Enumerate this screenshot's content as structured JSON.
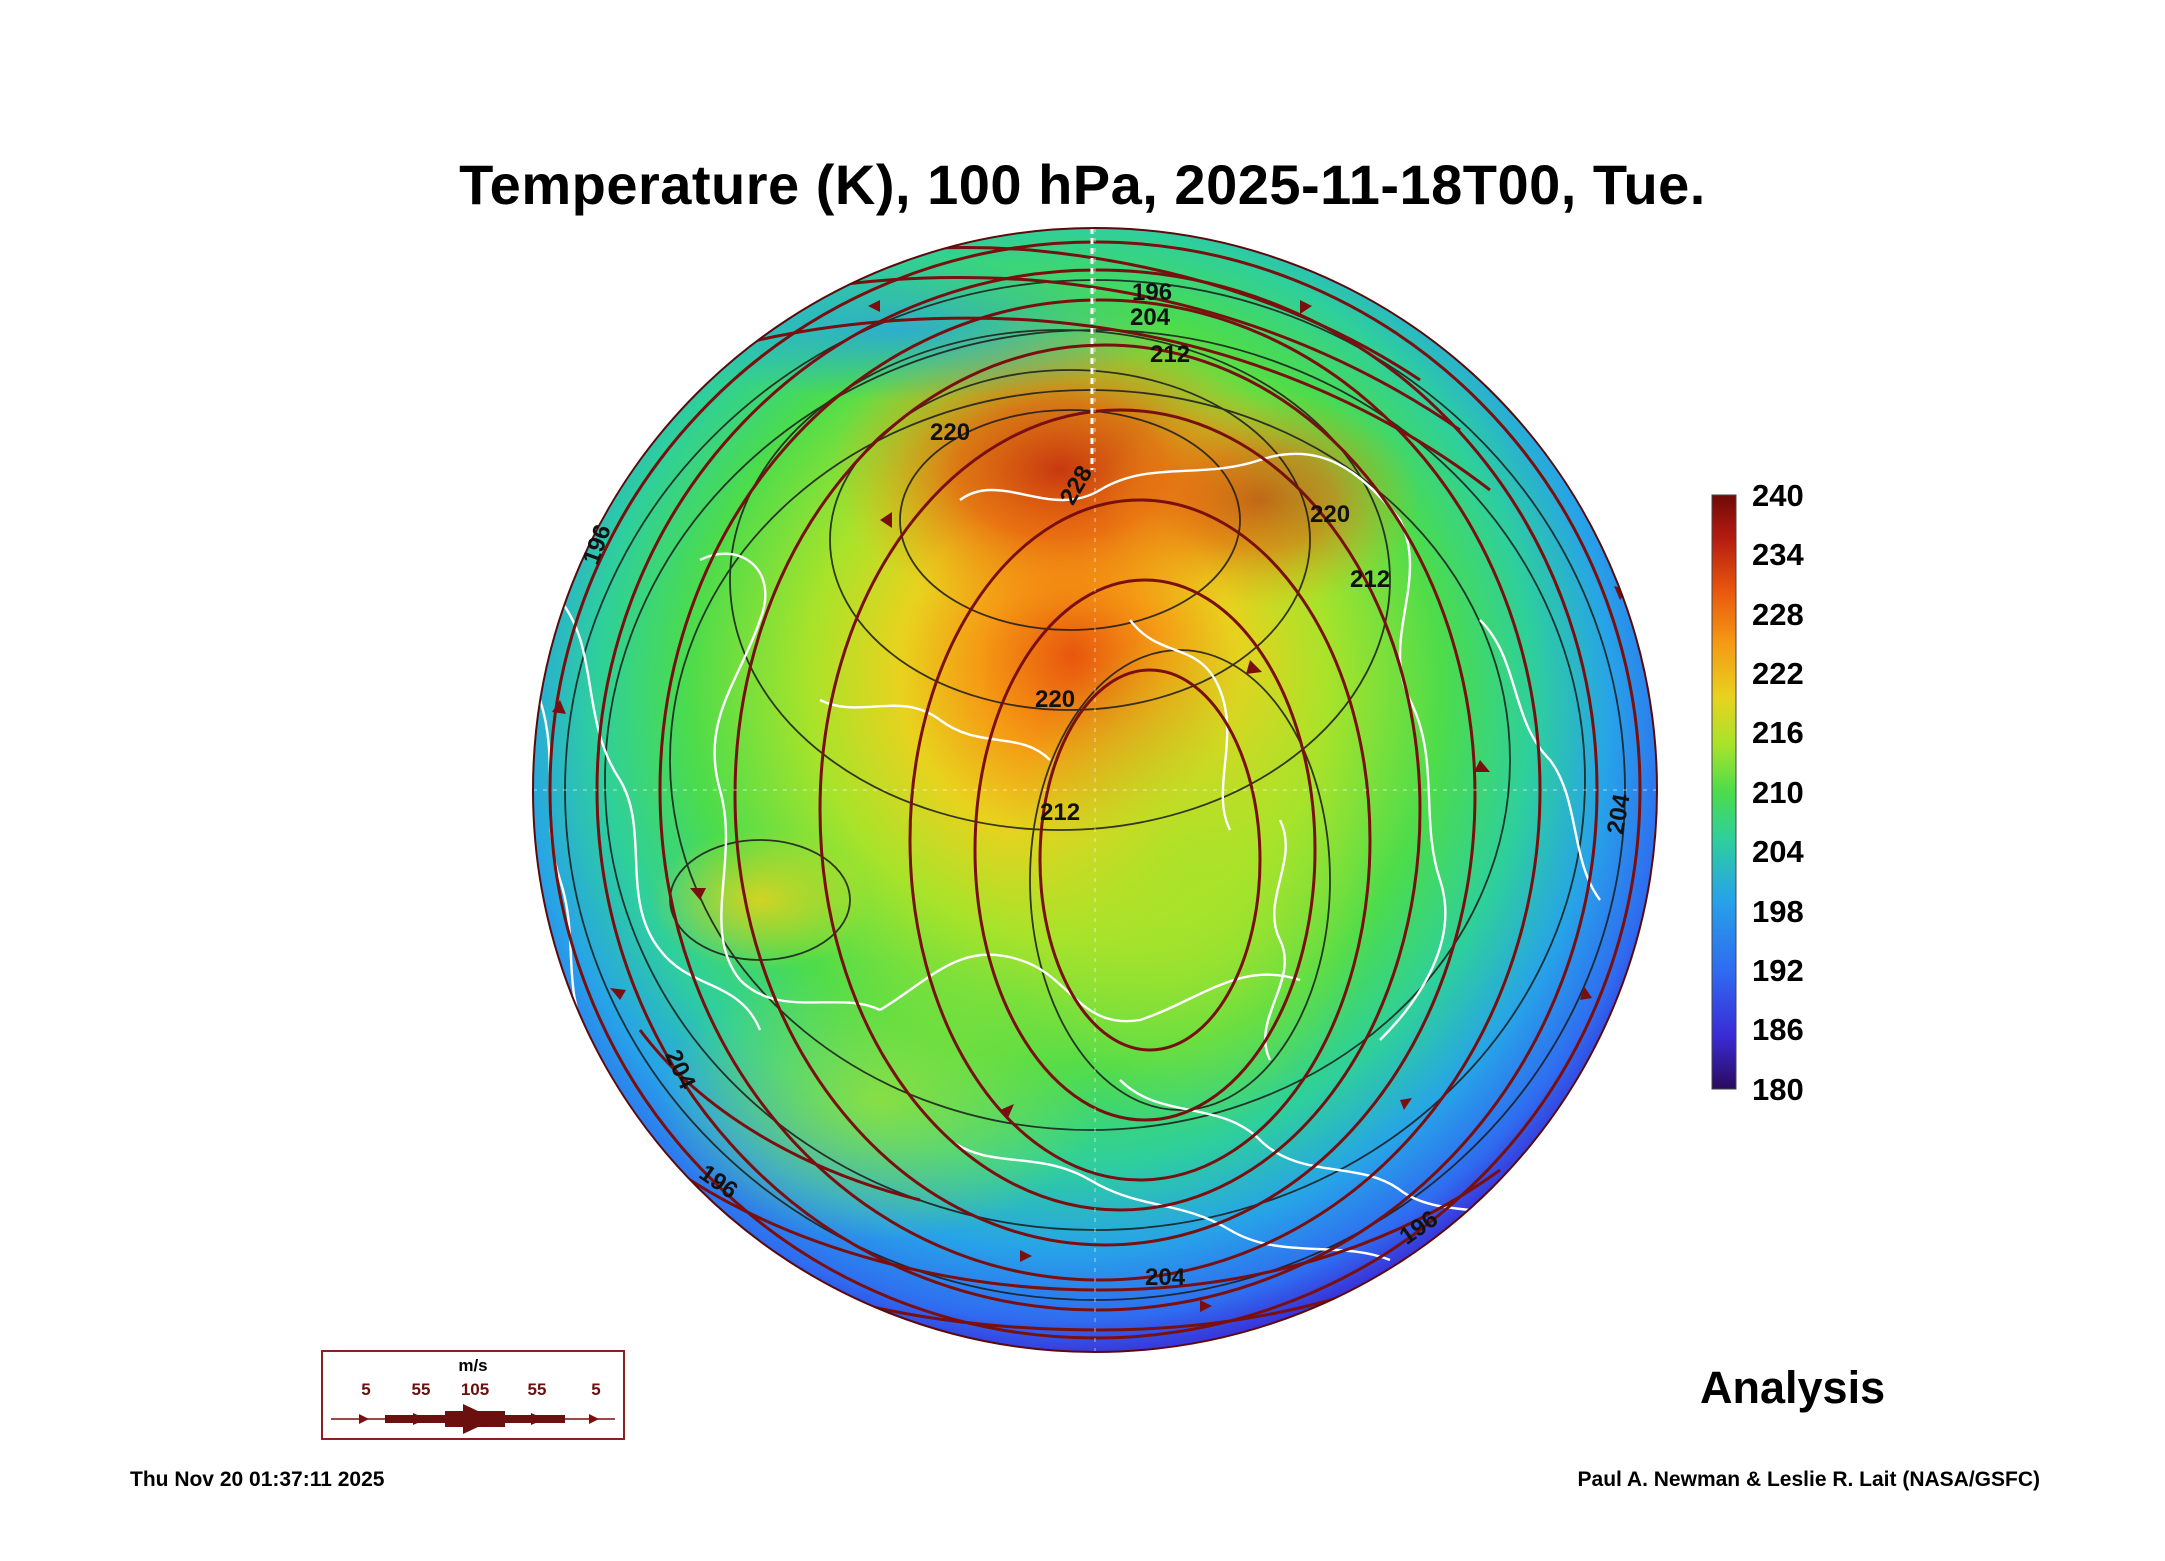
{
  "header": {
    "title": "Temperature (K), 100 hPa, 2025-11-18T00, Tue."
  },
  "colorbar": {
    "tick_labels": [
      "240",
      "234",
      "228",
      "222",
      "216",
      "210",
      "204",
      "198",
      "192",
      "186",
      "180"
    ],
    "min": 180,
    "max": 240,
    "colors": [
      "#2a0a5e",
      "#3a2bd6",
      "#2f6cf0",
      "#27a3e8",
      "#2ecf9c",
      "#4cdc4c",
      "#a8e32a",
      "#e8d21e",
      "#f59a14",
      "#e8560e",
      "#b31a10",
      "#6e0a06"
    ]
  },
  "contour_labels": [
    {
      "text": "196"
    },
    {
      "text": "204"
    },
    {
      "text": "212"
    },
    {
      "text": "220"
    },
    {
      "text": "228"
    },
    {
      "text": "220"
    },
    {
      "text": "212"
    },
    {
      "text": "220"
    },
    {
      "text": "212"
    },
    {
      "text": "196"
    },
    {
      "text": "204"
    },
    {
      "text": "204"
    },
    {
      "text": "196"
    },
    {
      "text": "204"
    },
    {
      "text": "196"
    }
  ],
  "wind_legend": {
    "unit": "m/s",
    "speeds": [
      "5",
      "55",
      "105",
      "55",
      "5"
    ]
  },
  "analysis_label": "Analysis",
  "footer": {
    "date": "Thu Nov 20 01:37:11 2025",
    "credit": "Paul A. Newman & Leslie R. Lait (NASA/GSFC)"
  },
  "colors": {
    "streamline": "#7a0f0f",
    "coastline": "#ffffff",
    "contour": "#1a1a1a"
  }
}
